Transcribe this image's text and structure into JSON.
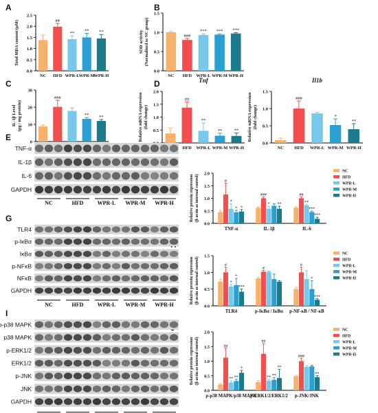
{
  "colors": {
    "NC": "#f6b26b",
    "HFD": "#f24e4e",
    "WPR-L": "#78c8ec",
    "WPR-M": "#2a9fd0",
    "WPR-H": "#1b7a8c"
  },
  "group_labels": [
    "NC",
    "HFD",
    "WPR-L",
    "WPR-M",
    "WPR-H"
  ],
  "chart_data": [
    {
      "panel": "A",
      "type": "bar",
      "ylabel": "Total MDA content (µM)",
      "categories": [
        "NC",
        "HFD",
        "WPR-L",
        "WPR-M",
        "WPR-H"
      ],
      "values": [
        1.38,
        1.98,
        1.42,
        1.5,
        1.45
      ],
      "errors": [
        0.22,
        0.15,
        0.15,
        0.18,
        0.18
      ],
      "sig": [
        "",
        "##",
        "**",
        "**",
        "**"
      ],
      "ylim": [
        0,
        2.5
      ],
      "yticks": [
        0.0,
        0.5,
        1.0,
        1.5,
        2.0,
        2.5
      ]
    },
    {
      "panel": "B",
      "type": "bar",
      "ylabel": "SOD activity (Normalized to NC group)",
      "categories": [
        "NC",
        "HFD",
        "WPR-L",
        "WPR-M",
        "WPR-H"
      ],
      "values": [
        1.0,
        0.8,
        0.93,
        0.94,
        0.97
      ],
      "errors": [
        0.02,
        0.04,
        0.03,
        0.02,
        0.02
      ],
      "sig": [
        "",
        "###",
        "***",
        "***",
        "***"
      ],
      "ylim": [
        0,
        1.5
      ],
      "yticks": [
        0.0,
        0.5,
        1.0,
        1.5
      ]
    },
    {
      "panel": "C",
      "type": "bar",
      "ylabel": "IL-1β Level (pg / mg protein)",
      "categories": [
        "NC",
        "HFD",
        "WPR-L",
        "WPR-M",
        "WPR-H"
      ],
      "values": [
        8.8,
        20.2,
        17.8,
        13.2,
        12.0
      ],
      "errors": [
        0.8,
        3.8,
        1.8,
        0.8,
        0.8
      ],
      "sig": [
        "",
        "###",
        "",
        "**",
        "**"
      ],
      "ylim": [
        0,
        30
      ],
      "yticks": [
        0,
        10,
        20,
        30
      ]
    },
    {
      "panel": "D",
      "type": "bar",
      "title": "Tnf",
      "ylabel": "Relative mRNA expression (fold change)",
      "categories": [
        "NC",
        "HFD",
        "WPR-L",
        "WPR-M",
        "WPR-H"
      ],
      "values": [
        0.37,
        1.37,
        0.47,
        0.28,
        0.27
      ],
      "errors": [
        0.2,
        0.22,
        0.3,
        0.1,
        0.12
      ],
      "sig": [
        "",
        "##",
        "**",
        "**",
        "**"
      ],
      "ylim": [
        0,
        2.0
      ],
      "yticks": [
        0.0,
        0.5,
        1.0,
        1.5,
        2.0
      ]
    },
    {
      "panel": "D2",
      "type": "bar",
      "title": "Il1b",
      "ylabel": "Relative mRNA expression (fold change)",
      "categories": [
        "NC",
        "HFD",
        "WPR-L",
        "WPR-M",
        "WPR-H"
      ],
      "values": [
        0.08,
        1.0,
        0.86,
        0.52,
        0.4
      ],
      "errors": [
        0.06,
        0.22,
        0.03,
        0.18,
        0.16
      ],
      "sig": [
        "",
        "###",
        "",
        "*",
        "**"
      ],
      "ylim": [
        0,
        1.5
      ],
      "yticks": [
        0.0,
        0.5,
        1.0,
        1.5
      ]
    },
    {
      "panel": "F",
      "type": "bar",
      "ylabel": "Relative protein expression (β-actin as internal control)",
      "categories": [
        "TNF-α",
        "IL-1β",
        "IL-6"
      ],
      "series": [
        {
          "name": "NC",
          "values": [
            0.45,
            0.62,
            0.62
          ],
          "errors": [
            0.07,
            0.04,
            0.04
          ]
        },
        {
          "name": "HFD",
          "values": [
            1.15,
            1.0,
            1.0
          ],
          "errors": [
            0.45,
            0.05,
            0.06
          ]
        },
        {
          "name": "WPR-L",
          "values": [
            0.58,
            0.58,
            0.72
          ],
          "errors": [
            0.2,
            0.1,
            0.04
          ]
        },
        {
          "name": "WPR-M",
          "values": [
            0.44,
            0.7,
            0.45
          ],
          "errors": [
            0.08,
            0.08,
            0.04
          ]
        },
        {
          "name": "WPR-H",
          "values": [
            0.47,
            0.58,
            0.18
          ],
          "errors": [
            0.08,
            0.1,
            0.06
          ]
        }
      ],
      "sig": [
        [
          "",
          "#",
          "*",
          "*",
          "*"
        ],
        [
          "",
          "###",
          "*",
          "",
          "**"
        ],
        [
          "",
          "##",
          "**",
          "***",
          "***"
        ]
      ],
      "ylim": [
        0,
        2.0
      ],
      "yticks": [
        0.0,
        0.5,
        1.0,
        1.5,
        2.0
      ],
      "legend": "top-right"
    },
    {
      "panel": "H",
      "type": "bar",
      "ylabel": "Relative protein expression (β-actin as internal control)",
      "categories": [
        "TLR4",
        "p-IκBα / IκBα",
        "p-NF-κB / NF-κB"
      ],
      "series": [
        {
          "name": "NC",
          "values": [
            0.72,
            0.82,
            0.5
          ],
          "errors": [
            0.08,
            0.04,
            0.04
          ]
        },
        {
          "name": "HFD",
          "values": [
            1.0,
            1.02,
            1.0
          ],
          "errors": [
            0.15,
            0.04,
            0.15
          ]
        },
        {
          "name": "WPR-L",
          "values": [
            0.58,
            1.02,
            0.8
          ],
          "errors": [
            0.06,
            0.02,
            0.25
          ]
        },
        {
          "name": "WPR-M",
          "values": [
            0.62,
            0.8,
            0.5
          ],
          "errors": [
            0.2,
            0.15,
            0.25
          ]
        },
        {
          "name": "WPR-H",
          "values": [
            0.42,
            0.72,
            0.18
          ],
          "errors": [
            0.08,
            0.03,
            0.03
          ]
        }
      ],
      "sig": [
        [
          "",
          "#",
          "*",
          "*",
          "***"
        ],
        [
          "",
          "#",
          "",
          "",
          ""
        ],
        [
          "",
          "#",
          "",
          "*",
          "***"
        ]
      ],
      "ylim": [
        0,
        1.5
      ],
      "yticks": [
        0.0,
        0.5,
        1.0,
        1.5
      ],
      "legend": "top-right"
    },
    {
      "panel": "J",
      "type": "bar",
      "ylabel": "Relative protein expression (β-actin as internal control)",
      "categories": [
        "p-p38 MAPK/p38 MAPK",
        "p-ERK1/2/ERK1/2",
        "p-JNK/JNK"
      ],
      "series": [
        {
          "name": "NC",
          "values": [
            0.2,
            0.28,
            0.48
          ],
          "errors": [
            0.03,
            0.05,
            0.02
          ]
        },
        {
          "name": "HFD",
          "values": [
            1.12,
            1.25,
            1.0
          ],
          "errors": [
            0.32,
            0.35,
            0.1
          ]
        },
        {
          "name": "WPR-L",
          "values": [
            0.27,
            0.33,
            0.8
          ],
          "errors": [
            0.06,
            0.05,
            0.04
          ]
        },
        {
          "name": "WPR-M",
          "values": [
            0.32,
            0.36,
            0.82
          ],
          "errors": [
            0.06,
            0.08,
            0.04
          ]
        },
        {
          "name": "WPR-H",
          "values": [
            0.6,
            0.42,
            0.45
          ],
          "errors": [
            0.08,
            0.3,
            0.05
          ]
        }
      ],
      "sig": [
        [
          "",
          "##",
          "**",
          "**",
          "*"
        ],
        [
          "",
          "##",
          "**",
          "**",
          "**"
        ],
        [
          "",
          "###",
          "",
          "",
          "**"
        ]
      ],
      "ylim": [
        0,
        2.0
      ],
      "yticks": [
        0.0,
        0.5,
        1.0,
        1.5,
        2.0
      ],
      "legend": "top-right"
    }
  ],
  "blots": {
    "E": {
      "labels": [
        "TNF-α",
        "IL-1β",
        "IL-6",
        "GAPDH"
      ]
    },
    "G": {
      "labels": [
        "TLR4",
        "p-IκBα",
        "IκBα",
        "p-NFκB",
        "NFκB",
        "GAPDH"
      ]
    },
    "I": {
      "labels": [
        "p-p38 MAPK",
        "p38 MAPK",
        "p-ERK1/2",
        "ERK1/2",
        "p-JNK",
        "JNK",
        "GAPDH"
      ]
    }
  }
}
